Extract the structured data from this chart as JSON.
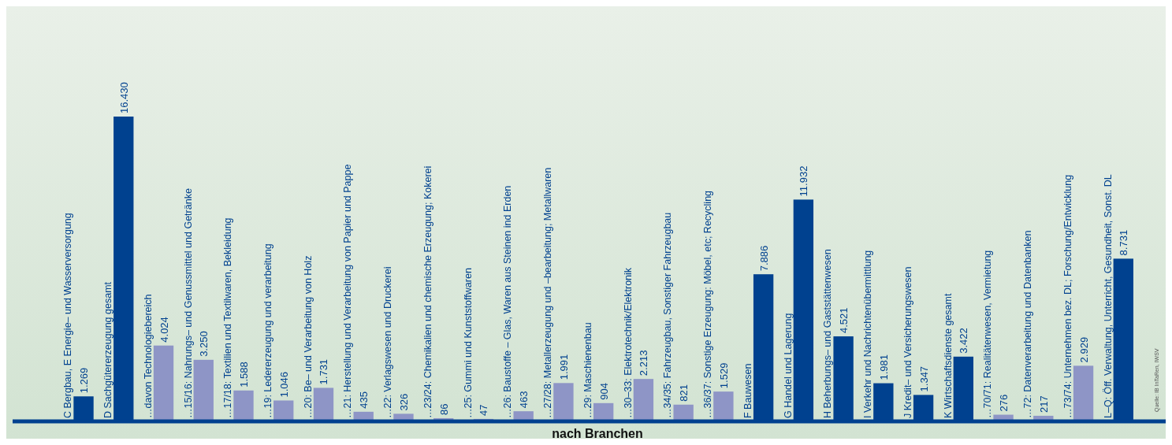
{
  "chart_data": {
    "type": "bar",
    "xlabel": "nach Branchen",
    "categories": [
      "C Bergbau, E Energie– und Wasserversorgung",
      "D Sachgütererzeugung gesamt",
      "…davon Technologiebereich",
      "…15/16: Nahrungs– und Genussmittel und Getränke",
      "…17/18: Textilien und Textilwaren, Bekleidung",
      "…19: Ledererzeugung und verarbeitung",
      "…20: Be– und Verarbeitung von Holz",
      "…21: Herstellung und Verarbeitung von Papier und Pappe",
      "…22: Verlagswesen und Druckerei",
      "…23/24: Chemikalien und chemische Erzeugung; Kokerei",
      "…25: Gummi und Kunststoffwaren",
      "…26: Baustoffe – Glas, Waren aus Steinen ind Erden",
      "…27/28: Metallerzeugung und –bearbeitung; Metallwaren",
      "…29: Maschienenbau",
      "…30–33: Elektrotechnik/Elektronik",
      "…34/35: Fahrzeugbau, Sonstiger Fahrzeugbau",
      "…36/37: Sonstige Erzeugung: Möbel, etc; Recycling",
      "F Bauwesen",
      "G Handel und Lagerung",
      "H Beherbungs– und Gaststättenwesen",
      "I Verkehr und Nachrichtenübermittlung",
      "J Kredit– und Versicherungswesen",
      "K Wirtschaftsdienste gesamt",
      "…70/71: Realitätenwesen, Vermietung",
      "…72: Datenverarbeitung und Datenbanken",
      "…73/74: Unternehmen bez. DL; Forschung/Entwicklung",
      "L–Q: Öff. Verwaltung, Unterricht, Gesundheit, Sonst. DL"
    ],
    "values": [
      1269,
      16430,
      4024,
      3250,
      1588,
      1046,
      1731,
      435,
      326,
      86,
      47,
      463,
      1991,
      904,
      2213,
      821,
      1529,
      7886,
      11932,
      4521,
      1981,
      1347,
      3422,
      276,
      217,
      2929,
      8731
    ],
    "value_labels": [
      "1.269",
      "16.430",
      "4.024",
      "3.250",
      "1.588",
      "1.046",
      "1.731",
      "435",
      "326",
      "86",
      "47",
      "463",
      "1.991",
      "904",
      "2.213",
      "821",
      "1.529",
      "7.886",
      "11.932",
      "4.521",
      "1.981",
      "1.347",
      "3.422",
      "276",
      "217",
      "2.929",
      "8.731"
    ],
    "colors": [
      "#00418f",
      "#00418f",
      "#8e95c6",
      "#8e95c6",
      "#8e95c6",
      "#8e95c6",
      "#8e95c6",
      "#8e95c6",
      "#8e95c6",
      "#8e95c6",
      "#8e95c6",
      "#8e95c6",
      "#8e95c6",
      "#8e95c6",
      "#8e95c6",
      "#8e95c6",
      "#8e95c6",
      "#00418f",
      "#00418f",
      "#00418f",
      "#00418f",
      "#00418f",
      "#00418f",
      "#8e95c6",
      "#8e95c6",
      "#8e95c6",
      "#00418f"
    ],
    "annotations": [
      "Quelle: IB InTaRen, IWSV"
    ]
  }
}
